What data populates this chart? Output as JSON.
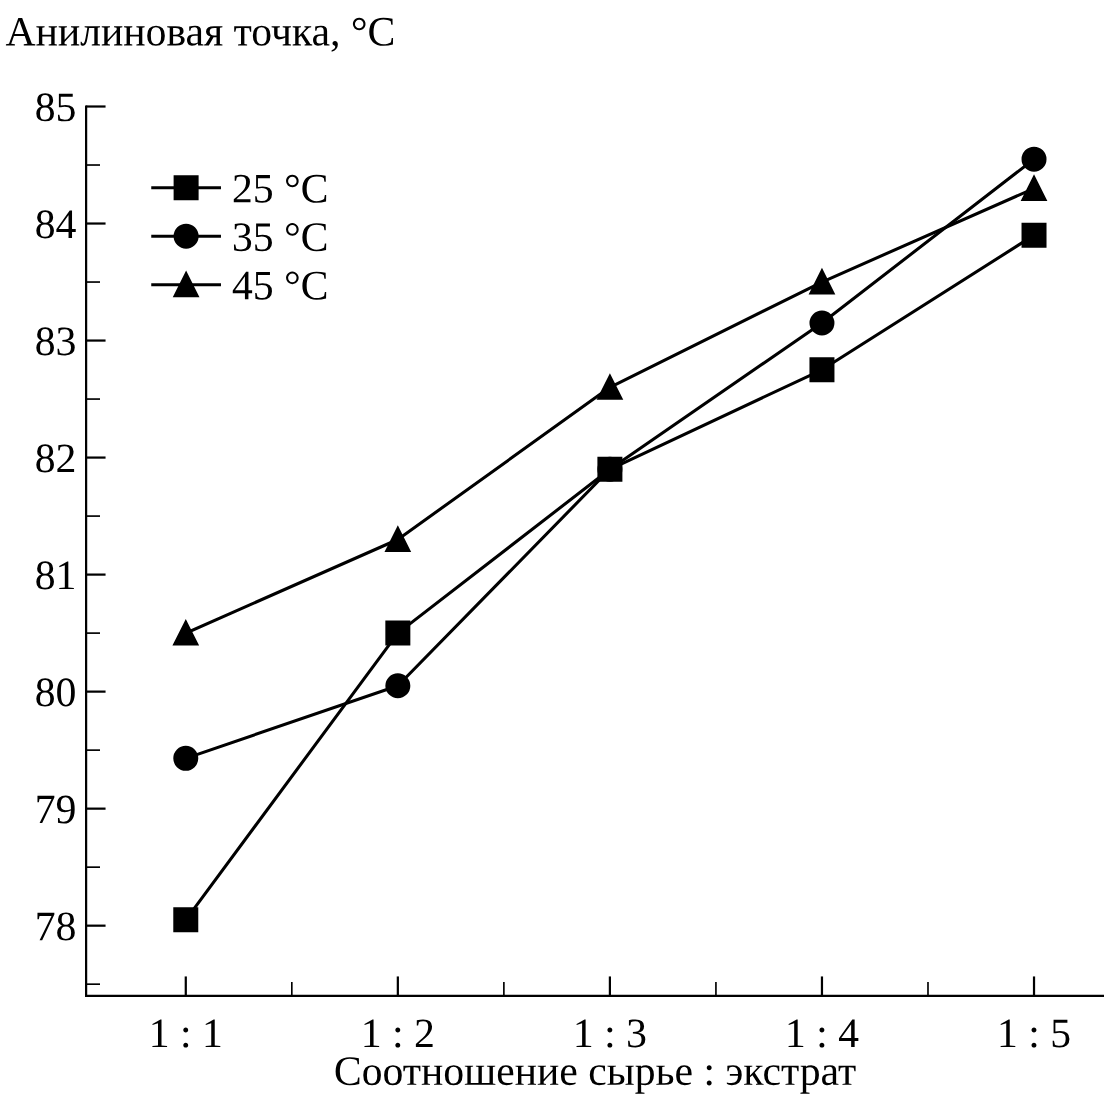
{
  "chart_data": {
    "type": "line",
    "ylabel": "Анилиновая точка, °С",
    "xlabel": "Соотношение сырье : экстрат",
    "categories": [
      "1 : 1",
      "1 : 2",
      "1 : 3",
      "1 : 4",
      "1 : 5"
    ],
    "series": [
      {
        "name": "25 °С",
        "color": "#000000",
        "marker": "square",
        "values": [
          78.05,
          80.5,
          81.9,
          82.75,
          83.9
        ]
      },
      {
        "name": "35 °С",
        "color": "#000000",
        "marker": "circle",
        "values": [
          79.43,
          80.05,
          81.9,
          83.15,
          84.55
        ]
      },
      {
        "name": "45 °С",
        "color": "#000000",
        "marker": "triangle",
        "values": [
          80.5,
          81.3,
          82.6,
          83.5,
          84.3
        ]
      }
    ],
    "ylim": [
      77.4,
      85
    ],
    "yticks": [
      78,
      79,
      80,
      81,
      82,
      83,
      84,
      85
    ],
    "grid": false,
    "legend": "top left",
    "line_style": "solid"
  }
}
